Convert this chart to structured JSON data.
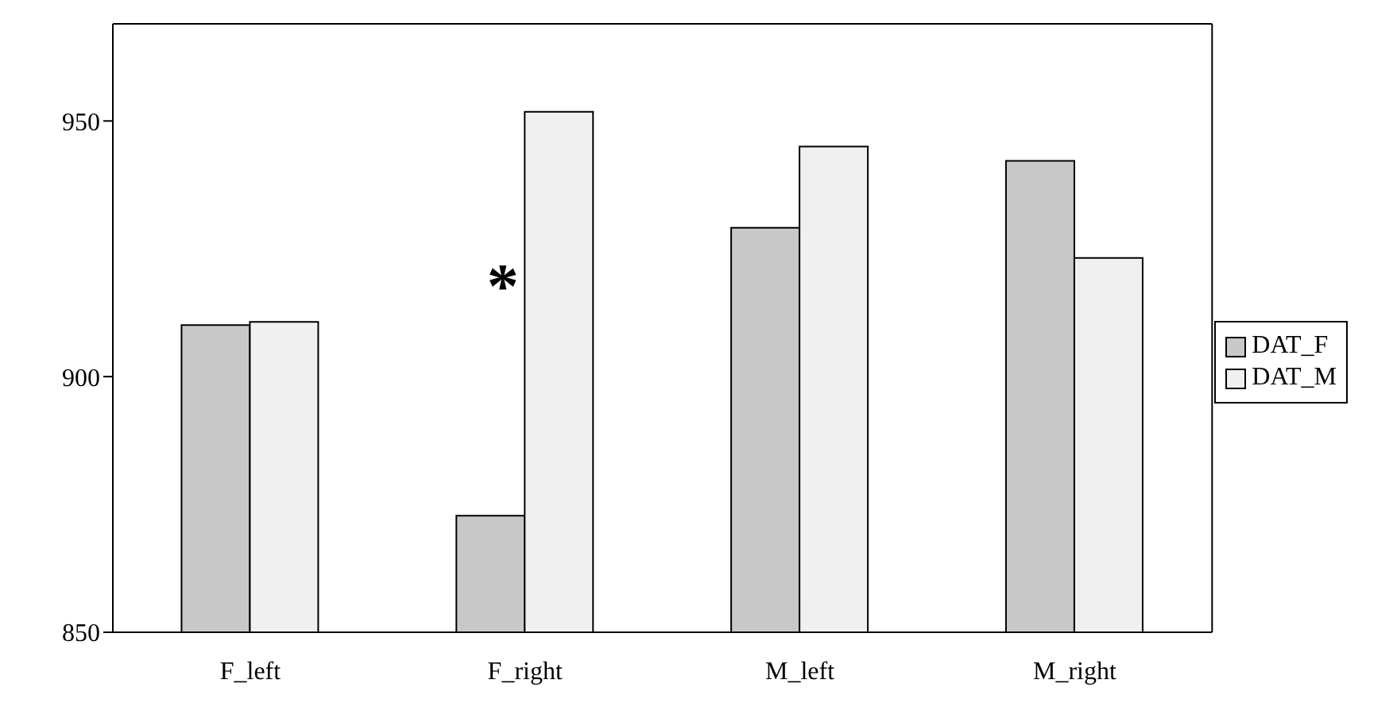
{
  "chart_data": {
    "type": "bar",
    "categories": [
      "F_left",
      "F_right",
      "M_left",
      "M_right"
    ],
    "series": [
      {
        "name": "DAT_F",
        "color": "#c8c8c8",
        "values": [
          910.1,
          872.8,
          929.1,
          942.2
        ]
      },
      {
        "name": "DAT_M",
        "color": "#f0f0f0",
        "values": [
          910.7,
          951.8,
          945.0,
          923.2
        ]
      }
    ],
    "ylim": [
      850,
      969
    ],
    "yticks": [
      850,
      900,
      950
    ],
    "grid": false,
    "legend": "right",
    "annotations": [
      {
        "text": "*",
        "x": "F_right",
        "y": 921
      }
    ]
  }
}
